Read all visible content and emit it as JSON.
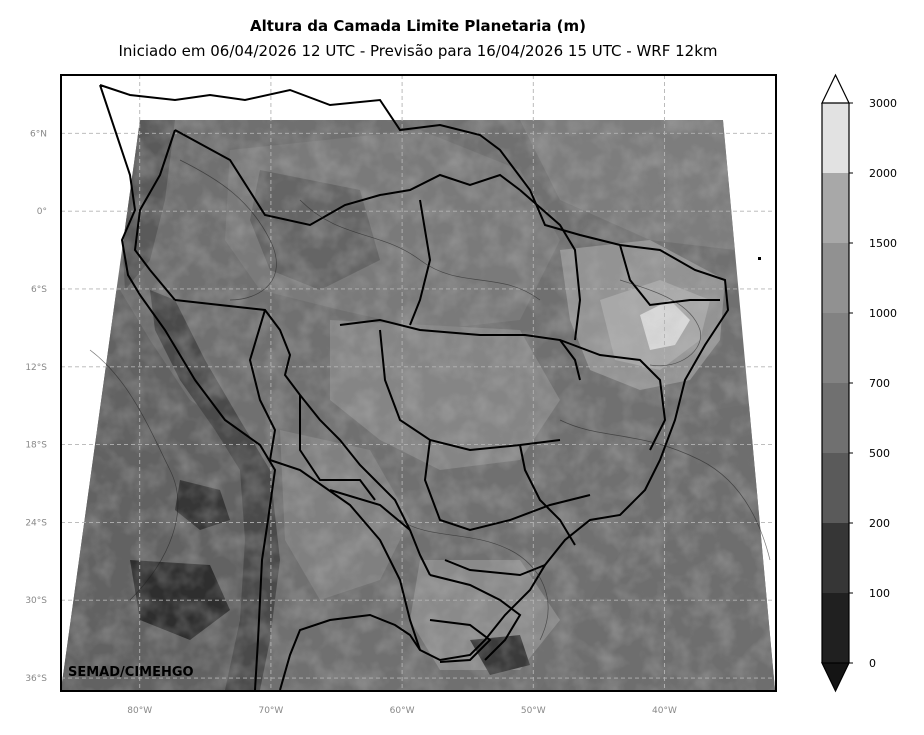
{
  "header": {
    "title": "Altura da Camada Limite Planetaria (m)",
    "subtitle": "Iniciado em 06/04/2026 12 UTC - Previsão para 16/04/2026 15 UTC - WRF 12km"
  },
  "map": {
    "credit": "SEMAD/CIMEHGO",
    "lon_range": [
      -86,
      -31.5
    ],
    "lat_range": [
      -37,
      10.5
    ],
    "lat_ticks": [
      {
        "value": 6,
        "label": "6°N"
      },
      {
        "value": 0,
        "label": "0°"
      },
      {
        "value": -6,
        "label": "6°S"
      },
      {
        "value": -12,
        "label": "12°S"
      },
      {
        "value": -18,
        "label": "18°S"
      },
      {
        "value": -24,
        "label": "24°S"
      },
      {
        "value": -30,
        "label": "30°S"
      },
      {
        "value": -36,
        "label": "36°S"
      }
    ],
    "lon_ticks": [
      {
        "value": -80,
        "label": "80°W"
      },
      {
        "value": -70,
        "label": "70°W"
      },
      {
        "value": -60,
        "label": "60°W"
      },
      {
        "value": -50,
        "label": "50°W"
      },
      {
        "value": -40,
        "label": "40°W"
      }
    ],
    "grid": true
  },
  "colorbar": {
    "levels": [
      "0",
      "100",
      "200",
      "500",
      "700",
      "1000",
      "1500",
      "2000",
      "3000"
    ],
    "colors": [
      "#202020",
      "#363636",
      "#5a5a5a",
      "#707070",
      "#828282",
      "#919191",
      "#a8a8a8",
      "#e2e2e2"
    ],
    "under_color": "#141414",
    "over_color": "#ffffff",
    "extend": "both"
  }
}
